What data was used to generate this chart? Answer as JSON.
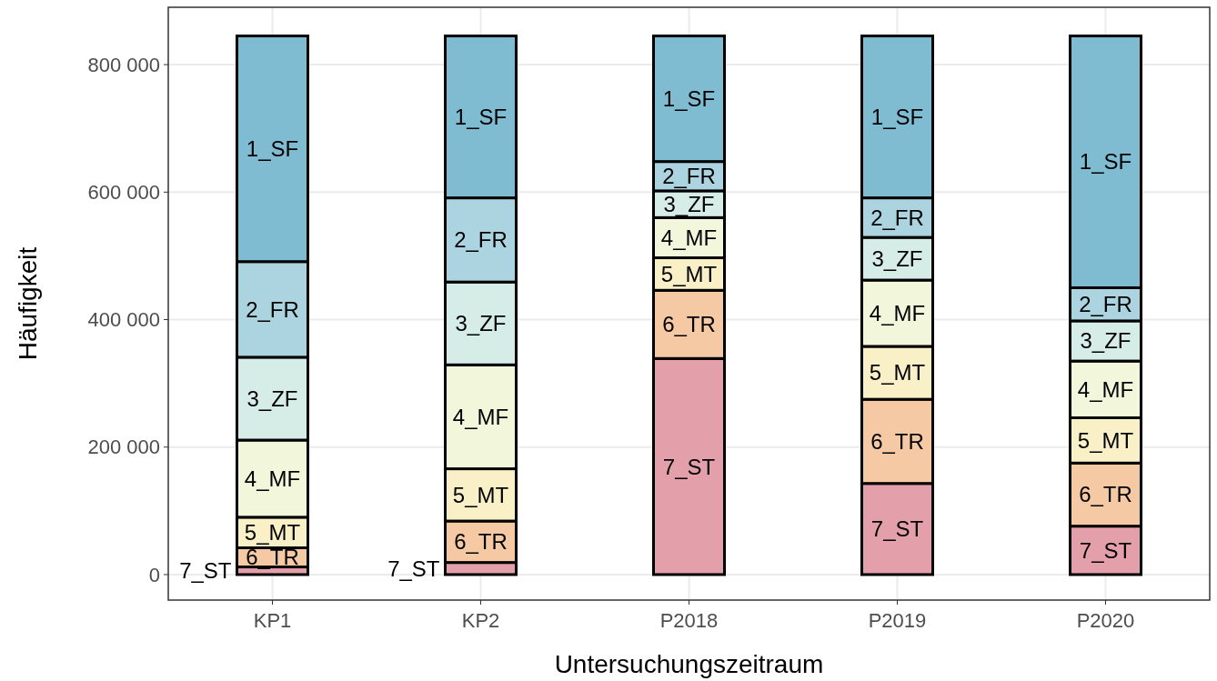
{
  "chart_data": {
    "type": "bar",
    "stacked": true,
    "xlabel": "Untersuchungszeitraum",
    "ylabel": "Häufigkeit",
    "categories": [
      "KP1",
      "KP2",
      "P2018",
      "P2019",
      "P2020"
    ],
    "series": [
      {
        "name": "7_ST",
        "color": "#e3a0aa",
        "values": [
          12000,
          19000,
          339000,
          143000,
          76000
        ]
      },
      {
        "name": "6_TR",
        "color": "#f4c9a3",
        "values": [
          30000,
          65000,
          107000,
          132000,
          99000
        ]
      },
      {
        "name": "5_MT",
        "color": "#faf0c8",
        "values": [
          48000,
          82000,
          51000,
          83000,
          71000
        ]
      },
      {
        "name": "4_MF",
        "color": "#f2f7dc",
        "values": [
          121000,
          163000,
          63000,
          104000,
          89000
        ]
      },
      {
        "name": "3_ZF",
        "color": "#d6ece6",
        "values": [
          130000,
          130000,
          42000,
          67000,
          63000
        ]
      },
      {
        "name": "2_FR",
        "color": "#acd4e0",
        "values": [
          150000,
          132000,
          46000,
          62000,
          52000
        ]
      },
      {
        "name": "1_SF",
        "color": "#7fbcd2",
        "values": [
          354000,
          254000,
          197000,
          254000,
          395000
        ]
      }
    ],
    "ylim": [
      -40000,
      890000
    ],
    "yticks": [
      {
        "value": 0,
        "label": "0"
      },
      {
        "value": 200000,
        "label": "200 000"
      },
      {
        "value": 400000,
        "label": "400 000"
      },
      {
        "value": 600000,
        "label": "600 000"
      },
      {
        "value": 800000,
        "label": "800 000"
      }
    ],
    "grid": true
  }
}
